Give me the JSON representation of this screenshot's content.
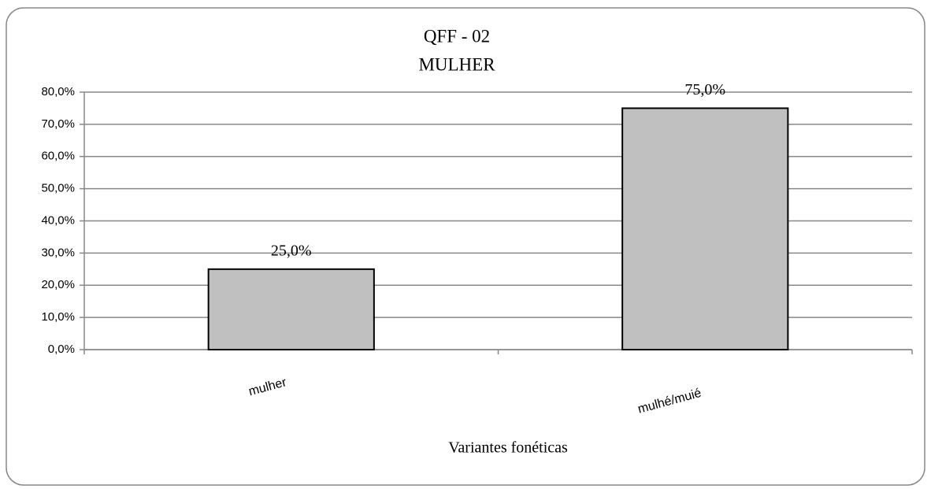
{
  "chart_data": {
    "type": "bar",
    "title": "QFF  - 02",
    "subtitle": "MULHER",
    "categories": [
      "mulher",
      "mulhé/muié"
    ],
    "values": [
      25,
      75
    ],
    "value_labels": [
      "25,0%",
      "75,0%"
    ],
    "color": "#c0c0c0",
    "x_label": "Variantes fonéticas",
    "ylim": [
      0,
      80
    ],
    "yticks": [
      {
        "value": 0,
        "label": "0,0%"
      },
      {
        "value": 10,
        "label": "10,0%"
      },
      {
        "value": 20,
        "label": "20,0%"
      },
      {
        "value": 30,
        "label": "30,0%"
      },
      {
        "value": 40,
        "label": "40,0%"
      },
      {
        "value": 50,
        "label": "50,0%"
      },
      {
        "value": 60,
        "label": "60,0%"
      },
      {
        "value": 70,
        "label": "70,0%"
      },
      {
        "value": 80,
        "label": "80,0%"
      }
    ],
    "grid": true
  }
}
